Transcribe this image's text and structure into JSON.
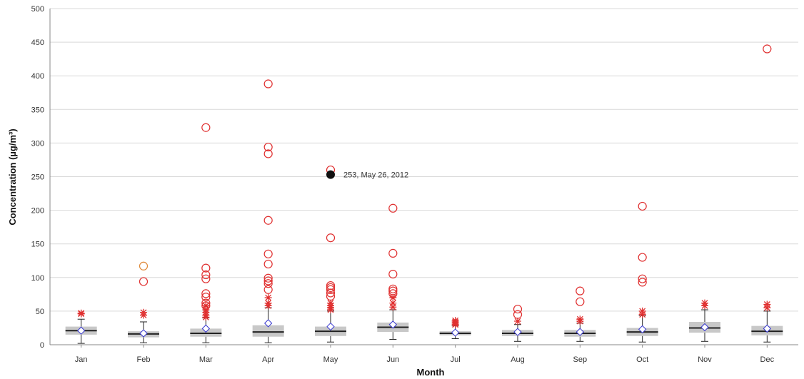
{
  "chart_data": {
    "type": "box",
    "xlabel": "Month",
    "ylabel": "Concentration (µg/m³)",
    "ylim": [
      0,
      500
    ],
    "yticks": [
      0,
      50,
      100,
      150,
      200,
      250,
      300,
      350,
      400,
      450,
      500
    ],
    "grid": "horizontal",
    "categories": [
      "Jan",
      "Feb",
      "Mar",
      "Apr",
      "May",
      "Jun",
      "Jul",
      "Aug",
      "Sep",
      "Oct",
      "Nov",
      "Dec"
    ],
    "boxes": [
      {
        "category": "Jan",
        "whisker_low": 2,
        "q1": 15,
        "median": 21,
        "q3": 27,
        "whisker_high": 38,
        "mean": 21
      },
      {
        "category": "Feb",
        "whisker_low": 3,
        "q1": 11,
        "median": 16,
        "q3": 20,
        "whisker_high": 34,
        "mean": 17
      },
      {
        "category": "Mar",
        "whisker_low": 3,
        "q1": 12,
        "median": 17,
        "q3": 24,
        "whisker_high": 40,
        "mean": 24
      },
      {
        "category": "Apr",
        "whisker_low": 3,
        "q1": 12,
        "median": 19,
        "q3": 29,
        "whisker_high": 55,
        "mean": 32
      },
      {
        "category": "May",
        "whisker_low": 4,
        "q1": 13,
        "median": 20,
        "q3": 27,
        "whisker_high": 50,
        "mean": 27
      },
      {
        "category": "Jun",
        "whisker_low": 8,
        "q1": 19,
        "median": 26,
        "q3": 33,
        "whisker_high": 52,
        "mean": 30
      },
      {
        "category": "Jul",
        "whisker_low": 9,
        "q1": 14,
        "median": 17,
        "q3": 20,
        "whisker_high": 28,
        "mean": 18
      },
      {
        "category": "Aug",
        "whisker_low": 5,
        "q1": 13,
        "median": 17,
        "q3": 22,
        "whisker_high": 30,
        "mean": 19
      },
      {
        "category": "Sep",
        "whisker_low": 5,
        "q1": 12,
        "median": 17,
        "q3": 22,
        "whisker_high": 32,
        "mean": 19
      },
      {
        "category": "Oct",
        "whisker_low": 4,
        "q1": 13,
        "median": 19,
        "q3": 25,
        "whisker_high": 43,
        "mean": 23
      },
      {
        "category": "Nov",
        "whisker_low": 5,
        "q1": 18,
        "median": 25,
        "q3": 34,
        "whisker_high": 52,
        "mean": 26
      },
      {
        "category": "Dec",
        "whisker_low": 4,
        "q1": 14,
        "median": 20,
        "q3": 28,
        "whisker_high": 50,
        "mean": 24
      }
    ],
    "extreme_outliers": [
      {
        "category": "Feb",
        "values": [
          117
        ],
        "color": "#e08a3a"
      },
      {
        "category": "Feb",
        "values": [
          94
        ],
        "color": "#e03030"
      },
      {
        "category": "Mar",
        "values": [
          323,
          114,
          104,
          98,
          76,
          71,
          62,
          58
        ],
        "color": "#e03030"
      },
      {
        "category": "Apr",
        "values": [
          388,
          294,
          284,
          185,
          135,
          120,
          99,
          95,
          91,
          82
        ],
        "color": "#e03030"
      },
      {
        "category": "May",
        "values": [
          260,
          159,
          88,
          85,
          82,
          77,
          72
        ],
        "color": "#e03030"
      },
      {
        "category": "Jun",
        "values": [
          203,
          136,
          105,
          83,
          80,
          76
        ],
        "color": "#e03030"
      },
      {
        "category": "Aug",
        "values": [
          53,
          45
        ],
        "color": "#e03030"
      },
      {
        "category": "Sep",
        "values": [
          80,
          64
        ],
        "color": "#e03030"
      },
      {
        "category": "Oct",
        "values": [
          206,
          130,
          98,
          93
        ],
        "color": "#e03030"
      },
      {
        "category": "Dec",
        "values": [
          440
        ],
        "color": "#e03030"
      }
    ],
    "mild_outliers": [
      {
        "category": "Jan",
        "values": [
          47,
          46
        ]
      },
      {
        "category": "Feb",
        "values": [
          48,
          44
        ]
      },
      {
        "category": "Mar",
        "values": [
          58,
          52,
          48,
          44,
          41
        ]
      },
      {
        "category": "Apr",
        "values": [
          70,
          62,
          58
        ]
      },
      {
        "category": "May",
        "values": [
          62,
          58,
          55,
          52
        ]
      },
      {
        "category": "Jun",
        "values": [
          70,
          62,
          56
        ]
      },
      {
        "category": "Jul",
        "values": [
          36,
          34,
          32,
          30
        ]
      },
      {
        "category": "Aug",
        "values": [
          35
        ]
      },
      {
        "category": "Sep",
        "values": [
          38,
          35
        ]
      },
      {
        "category": "Oct",
        "values": [
          50,
          45
        ]
      },
      {
        "category": "Nov",
        "values": [
          62,
          58
        ]
      },
      {
        "category": "Dec",
        "values": [
          60,
          55
        ]
      }
    ],
    "highlight": {
      "category": "May",
      "value": 253,
      "label": "253, May 26, 2012"
    },
    "colors": {
      "box": "#c8c8c8",
      "median": "#222222",
      "whisker": "#222222",
      "mean": "#3a3ad0",
      "outlier": "#e03030",
      "mild": "#e03030",
      "highlight": "#111111",
      "grid": "#d9d9d9"
    }
  }
}
